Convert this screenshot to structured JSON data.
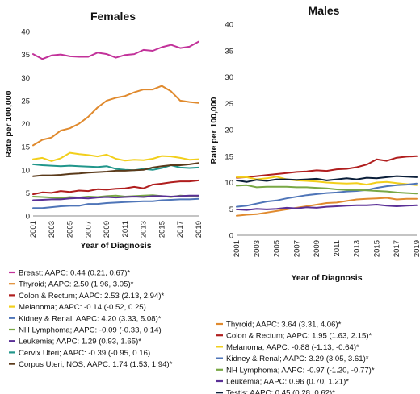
{
  "colors": {
    "breast": "#c2329a",
    "thyroid": "#e08a2e",
    "colon": "#b01e1e",
    "melanoma": "#f2cf1c",
    "kidney": "#4f75b8",
    "nhl": "#79a845",
    "leukemia": "#5a2f96",
    "cervix": "#21968b",
    "corpus": "#5a3a1a",
    "testis": "#0b1f3a"
  },
  "chart_data": [
    {
      "type": "line",
      "title": "Females",
      "xlabel": "Year of Diagnosis",
      "ylabel": "Rate per 100,000",
      "xlim": [
        2001,
        2019
      ],
      "ylim": [
        0,
        40
      ],
      "xticks": [
        "2001",
        "2003",
        "2005",
        "2007",
        "2009",
        "2011",
        "2013",
        "2015",
        "2017",
        "2019"
      ],
      "yticks": [
        "0",
        "5",
        "10",
        "15",
        "20",
        "25",
        "30",
        "35",
        "40"
      ],
      "x": [
        2001,
        2002,
        2003,
        2004,
        2005,
        2006,
        2007,
        2008,
        2009,
        2010,
        2011,
        2012,
        2013,
        2014,
        2015,
        2016,
        2017,
        2018,
        2019
      ],
      "legend_position": "bottom",
      "series": [
        {
          "name": "Breast; AAPC: 0.44 (0.21, 0.67)*",
          "color_key": "breast",
          "values": [
            35.1,
            34.0,
            34.8,
            35.0,
            34.6,
            34.5,
            34.5,
            35.4,
            35.1,
            34.3,
            34.9,
            35.1,
            36.0,
            35.8,
            36.6,
            37.1,
            36.4,
            36.7,
            37.8
          ]
        },
        {
          "name": "Thyroid; AAPC: 2.50 (1.96, 3.05)*",
          "color_key": "thyroid",
          "values": [
            15.3,
            16.5,
            17.0,
            18.5,
            19.0,
            20.0,
            21.5,
            23.5,
            25.0,
            25.6,
            26.0,
            26.8,
            27.4,
            27.4,
            28.2,
            27.0,
            25.0,
            24.7,
            24.5
          ]
        },
        {
          "name": "Colon & Rectum; AAPC: 2.53 (2.13, 2.94)*",
          "color_key": "colon",
          "values": [
            4.7,
            5.1,
            5.0,
            5.4,
            5.2,
            5.5,
            5.4,
            5.8,
            5.7,
            5.9,
            6.0,
            6.3,
            6.0,
            6.8,
            7.0,
            7.3,
            7.5,
            7.5,
            7.7
          ]
        },
        {
          "name": "Melanoma; AAPC: -0.14 (-0.52, 0.25)",
          "color_key": "melanoma",
          "values": [
            12.3,
            12.6,
            11.9,
            12.5,
            13.7,
            13.4,
            13.2,
            12.9,
            13.3,
            12.4,
            12.0,
            12.2,
            12.1,
            12.4,
            13.0,
            12.9,
            12.6,
            12.2,
            12.3
          ]
        },
        {
          "name": "Kidney & Renal; AAPC: 4.20 (3.33, 5.08)*",
          "color_key": "kidney",
          "values": [
            1.7,
            1.7,
            1.9,
            2.1,
            2.2,
            2.2,
            2.6,
            2.6,
            2.8,
            2.9,
            3.0,
            3.1,
            3.2,
            3.2,
            3.4,
            3.5,
            3.6,
            3.6,
            3.7
          ]
        },
        {
          "name": "NH Lymphoma; AAPC: -0.09 (-0.33, 0.14)",
          "color_key": "nhl",
          "values": [
            4.2,
            4.1,
            4.0,
            3.9,
            4.1,
            4.0,
            4.2,
            4.1,
            4.3,
            4.4,
            4.2,
            4.3,
            4.4,
            4.5,
            4.3,
            4.1,
            4.4,
            4.3,
            4.2
          ]
        },
        {
          "name": "Leukemia; AAPC: 1.29 (0.93, 1.65)*",
          "color_key": "leukemia",
          "values": [
            3.4,
            3.5,
            3.6,
            3.6,
            3.8,
            3.9,
            3.8,
            4.0,
            4.1,
            4.0,
            4.1,
            4.2,
            4.1,
            4.3,
            4.3,
            4.2,
            4.3,
            4.4,
            4.4
          ]
        },
        {
          "name": "Cervix Uteri; AAPC: -0.39 (-0.95, 0.16)",
          "color_key": "cervix",
          "values": [
            11.2,
            11.0,
            10.9,
            10.8,
            10.9,
            10.8,
            10.7,
            10.6,
            10.8,
            10.2,
            10.0,
            9.9,
            10.2,
            10.0,
            10.4,
            11.0,
            10.5,
            10.4,
            10.5
          ]
        },
        {
          "name": "Corpus Uteri, NOS; AAPC: 1.74 (1.53, 1.94)*",
          "color_key": "corpus",
          "values": [
            8.6,
            8.8,
            8.8,
            8.9,
            9.1,
            9.2,
            9.4,
            9.5,
            9.6,
            9.8,
            9.8,
            9.9,
            10.0,
            10.5,
            10.8,
            11.0,
            11.0,
            11.2,
            11.5
          ]
        }
      ]
    },
    {
      "type": "line",
      "title": "Males",
      "xlabel": "Year of Diagnosis",
      "ylabel": "Rate per 100,000",
      "xlim": [
        2001,
        2019
      ],
      "ylim": [
        0,
        40
      ],
      "xticks": [
        "2001",
        "2003",
        "2005",
        "2007",
        "2009",
        "2011",
        "2013",
        "2015",
        "2017",
        "2019"
      ],
      "yticks": [
        "0",
        "5",
        "10",
        "15",
        "20",
        "25",
        "30",
        "35",
        "40"
      ],
      "x": [
        2001,
        2002,
        2003,
        2004,
        2005,
        2006,
        2007,
        2008,
        2009,
        2010,
        2011,
        2012,
        2013,
        2014,
        2015,
        2016,
        2017,
        2018,
        2019
      ],
      "legend_position": "bottom",
      "series": [
        {
          "name": "Thyroid; AAPC: 3.64 (3.31, 4.06)*",
          "color_key": "thyroid",
          "values": [
            3.7,
            3.9,
            4.0,
            4.3,
            4.6,
            4.9,
            5.2,
            5.5,
            5.8,
            6.1,
            6.2,
            6.5,
            6.8,
            6.9,
            7.0,
            7.1,
            6.8,
            6.9,
            6.9
          ]
        },
        {
          "name": "Colon & Rectum; AAPC: 1.95 (1.63, 2.15)*",
          "color_key": "colon",
          "values": [
            10.9,
            11.0,
            11.2,
            11.4,
            11.6,
            11.8,
            12.0,
            12.1,
            12.3,
            12.2,
            12.5,
            12.6,
            12.9,
            13.4,
            14.4,
            14.1,
            14.7,
            14.9,
            15.0
          ]
        },
        {
          "name": "Melanoma; AAPC: -0.88 (-1.13, -0.64)*",
          "color_key": "melanoma",
          "values": [
            11.0,
            11.0,
            10.6,
            10.8,
            11.1,
            10.6,
            10.4,
            10.3,
            10.2,
            10.0,
            9.9,
            9.8,
            9.9,
            9.6,
            10.0,
            10.1,
            9.9,
            9.7,
            9.5
          ]
        },
        {
          "name": "Kidney & Renal; AAPC: 3.29 (3.05, 3.61)*",
          "color_key": "kidney",
          "values": [
            5.4,
            5.6,
            6.0,
            6.4,
            6.6,
            7.0,
            7.3,
            7.6,
            7.8,
            8.0,
            8.1,
            8.3,
            8.4,
            8.6,
            9.0,
            9.3,
            9.5,
            9.6,
            9.8
          ]
        },
        {
          "name": "NH Lymphoma; AAPC: -0.97 (-1.20, -0.77)*",
          "color_key": "nhl",
          "values": [
            9.4,
            9.5,
            9.1,
            9.2,
            9.2,
            9.2,
            9.1,
            9.1,
            9.0,
            8.9,
            8.7,
            8.6,
            8.6,
            8.5,
            8.4,
            8.3,
            8.1,
            8.0,
            7.9
          ]
        },
        {
          "name": "Leukemia; AAPC: 0.96 (0.70, 1.21)*",
          "color_key": "leukemia",
          "values": [
            4.9,
            4.8,
            5.0,
            4.9,
            5.0,
            5.2,
            5.1,
            5.3,
            5.2,
            5.4,
            5.5,
            5.6,
            5.7,
            5.7,
            5.8,
            5.6,
            5.5,
            5.6,
            5.7
          ]
        },
        {
          "name": "Testis; AAPC: 0.45 (0.28, 0.62)*",
          "color_key": "testis",
          "values": [
            10.4,
            10.1,
            10.5,
            10.3,
            10.6,
            10.6,
            10.5,
            10.6,
            10.7,
            10.4,
            10.6,
            10.8,
            10.6,
            10.9,
            10.8,
            11.0,
            11.2,
            11.1,
            11.0
          ]
        }
      ]
    }
  ]
}
